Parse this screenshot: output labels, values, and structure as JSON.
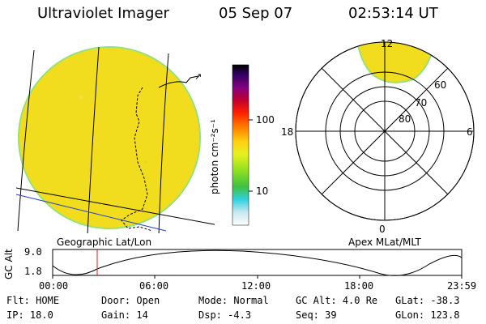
{
  "header": {
    "instrument": "Ultraviolet Imager",
    "date": "05 Sep 07",
    "time": "02:53:14 UT"
  },
  "colorbar": {
    "unit_label": "photon cm⁻²s⁻¹",
    "ticks": [
      "100",
      "10"
    ]
  },
  "left_panel": {
    "caption": "Geographic Lat/Lon"
  },
  "polar_plot": {
    "caption": "Apex MLat/MLT",
    "mlt_labels": {
      "top": "12",
      "left": "18",
      "right": "6",
      "bottom": "0"
    },
    "lat_labels": [
      "60",
      "70",
      "80"
    ]
  },
  "altitude_plot": {
    "ylabel": "GC Alt",
    "yticks": [
      "9.0",
      "1.8"
    ],
    "xticks": [
      "00:00",
      "06:00",
      "12:00",
      "18:00",
      "23:59"
    ],
    "marker_time": "02:53"
  },
  "status": {
    "flt": {
      "label": "Flt:",
      "value": "HOME"
    },
    "ip": {
      "label": "IP:",
      "value": "18.0"
    },
    "door": {
      "label": "Door:",
      "value": "Open"
    },
    "gain": {
      "label": "Gain:",
      "value": "14"
    },
    "mode": {
      "label": "Mode:",
      "value": "Normal"
    },
    "dsp": {
      "label": "Dsp:",
      "value": "-4.3"
    },
    "gcalt": {
      "label": "GC Alt:",
      "value": "4.0 Re"
    },
    "seq": {
      "label": "Seq:",
      "value": "39"
    },
    "glat": {
      "label": "GLat:",
      "value": "-38.3"
    },
    "glon": {
      "label": "GLon:",
      "value": "123.8"
    }
  },
  "colors": {
    "disk_fill": "#f2dc1e",
    "disk_edge": "#9ae07a",
    "marker": "#d02020",
    "blue_line": "#2040c0"
  }
}
